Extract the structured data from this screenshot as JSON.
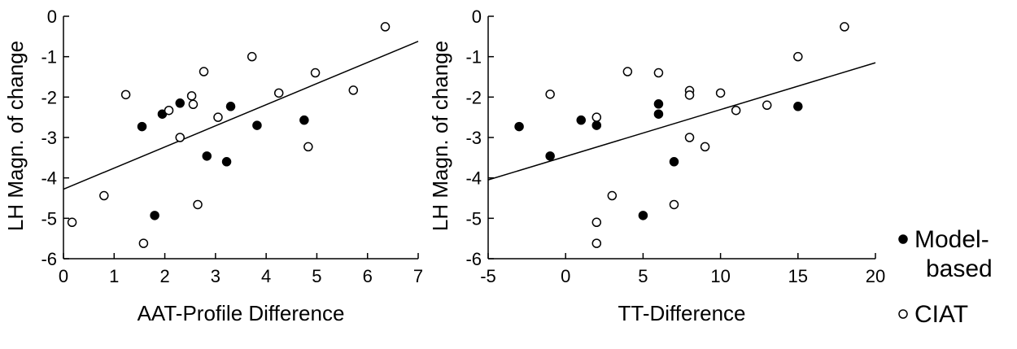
{
  "chart_data": [
    {
      "type": "scatter",
      "xlabel": "AAT-Profile Difference",
      "ylabel": "LH Magn. of change",
      "xlim": [
        0,
        7
      ],
      "ylim": [
        -6,
        0
      ],
      "xticks": [
        "0",
        "1",
        "2",
        "3",
        "4",
        "5",
        "6",
        "7"
      ],
      "yticks": [
        "0",
        "-1",
        "-2",
        "-3",
        "-4",
        "-5",
        "-6"
      ],
      "grid": false,
      "series": [
        {
          "name": "Model-based",
          "marker": "filled-circle",
          "points": [
            {
              "x": 1.55,
              "y": -2.73
            },
            {
              "x": 1.95,
              "y": -2.42
            },
            {
              "x": 2.3,
              "y": -2.15
            },
            {
              "x": 3.3,
              "y": -2.23
            },
            {
              "x": 3.82,
              "y": -2.7
            },
            {
              "x": 4.75,
              "y": -2.57
            },
            {
              "x": 2.83,
              "y": -3.46
            },
            {
              "x": 3.22,
              "y": -3.6
            },
            {
              "x": 1.8,
              "y": -4.93
            }
          ]
        },
        {
          "name": "CIAT",
          "marker": "open-circle",
          "points": [
            {
              "x": 6.35,
              "y": -0.26
            },
            {
              "x": 3.72,
              "y": -1.0
            },
            {
              "x": 2.77,
              "y": -1.37
            },
            {
              "x": 4.97,
              "y": -1.4
            },
            {
              "x": 1.23,
              "y": -1.94
            },
            {
              "x": 2.53,
              "y": -1.97
            },
            {
              "x": 4.25,
              "y": -1.9
            },
            {
              "x": 5.72,
              "y": -1.83
            },
            {
              "x": 2.08,
              "y": -2.33
            },
            {
              "x": 2.56,
              "y": -2.18
            },
            {
              "x": 3.05,
              "y": -2.5
            },
            {
              "x": 2.3,
              "y": -3.0
            },
            {
              "x": 4.83,
              "y": -3.23
            },
            {
              "x": 0.8,
              "y": -4.44
            },
            {
              "x": 2.65,
              "y": -4.66
            },
            {
              "x": 0.17,
              "y": -5.1
            },
            {
              "x": 1.58,
              "y": -5.62
            }
          ]
        }
      ],
      "regression_line": {
        "x": [
          0,
          7
        ],
        "y": [
          -4.28,
          -0.62
        ]
      }
    },
    {
      "type": "scatter",
      "xlabel": "TT-Difference",
      "ylabel": "LH Magn. of change",
      "xlim": [
        -5,
        20
      ],
      "ylim": [
        -6,
        0
      ],
      "xticks": [
        "-5",
        "0",
        "5",
        "10",
        "15",
        "20"
      ],
      "yticks": [
        "0",
        "-1",
        "-2",
        "-3",
        "-4",
        "-5",
        "-6"
      ],
      "grid": false,
      "series": [
        {
          "name": "Model-based",
          "marker": "filled-circle",
          "points": [
            {
              "x": -3,
              "y": -2.73
            },
            {
              "x": 1,
              "y": -2.57
            },
            {
              "x": 2,
              "y": -2.7
            },
            {
              "x": 6,
              "y": -2.17
            },
            {
              "x": 6,
              "y": -2.42
            },
            {
              "x": 15,
              "y": -2.23
            },
            {
              "x": -1,
              "y": -3.46
            },
            {
              "x": 7,
              "y": -3.6
            },
            {
              "x": 5,
              "y": -4.93
            }
          ]
        },
        {
          "name": "CIAT",
          "marker": "open-circle",
          "points": [
            {
              "x": 18,
              "y": -0.26
            },
            {
              "x": 15,
              "y": -1.0
            },
            {
              "x": 4,
              "y": -1.37
            },
            {
              "x": 6,
              "y": -1.4
            },
            {
              "x": -1,
              "y": -1.93
            },
            {
              "x": 8,
              "y": -1.84
            },
            {
              "x": 8,
              "y": -1.95
            },
            {
              "x": 10,
              "y": -1.9
            },
            {
              "x": 11,
              "y": -2.33
            },
            {
              "x": 13,
              "y": -2.2
            },
            {
              "x": 2,
              "y": -2.5
            },
            {
              "x": 8,
              "y": -3.0
            },
            {
              "x": 9,
              "y": -3.23
            },
            {
              "x": 3,
              "y": -4.44
            },
            {
              "x": 7,
              "y": -4.66
            },
            {
              "x": 2,
              "y": -5.1
            },
            {
              "x": 2,
              "y": -5.62
            }
          ]
        }
      ],
      "regression_line": {
        "x": [
          -5,
          20
        ],
        "y": [
          -4.05,
          -1.15
        ]
      }
    }
  ],
  "legend": {
    "placement": "right",
    "items": [
      {
        "marker": "filled-circle",
        "lines": [
          "Model-",
          "based"
        ]
      },
      {
        "marker": "open-circle",
        "lines": [
          "CIAT"
        ]
      }
    ]
  }
}
